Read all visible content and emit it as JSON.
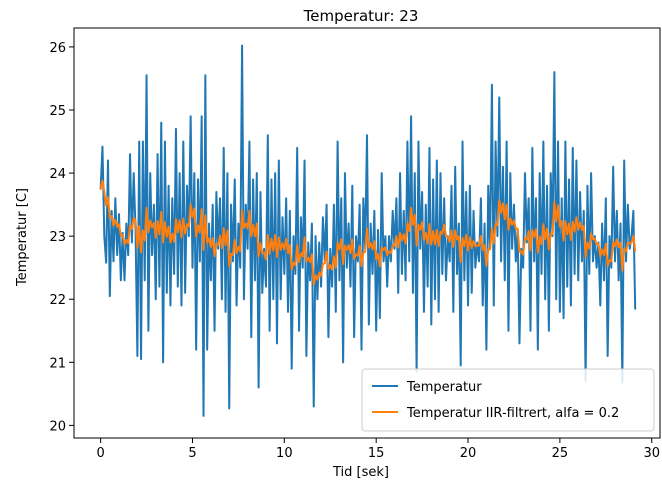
{
  "chart_data": {
    "type": "line",
    "title": "Temperatur: 23",
    "xlabel": "Tid [sek]",
    "ylabel": "Temperatur [C]",
    "xlim": [
      -1.45,
      30.45
    ],
    "ylim": [
      19.8,
      26.3
    ],
    "xticks": [
      0,
      5,
      10,
      15,
      20,
      25,
      30
    ],
    "yticks": [
      20,
      21,
      22,
      23,
      24,
      25,
      26
    ],
    "grid": false,
    "legend_position": "lower right",
    "series": [
      {
        "name": "Temperatur",
        "color": "#1f77b4",
        "x": [
          0.0,
          0.1,
          0.2,
          0.3,
          0.4,
          0.5,
          0.6,
          0.7,
          0.8,
          0.9,
          1.0,
          1.1,
          1.2,
          1.3,
          1.4,
          1.5,
          1.6,
          1.7,
          1.8,
          1.9,
          2.0,
          2.1,
          2.2,
          2.3,
          2.4,
          2.5,
          2.6,
          2.7,
          2.8,
          2.9,
          3.0,
          3.1,
          3.2,
          3.3,
          3.4,
          3.5,
          3.6,
          3.7,
          3.8,
          3.9,
          4.0,
          4.1,
          4.2,
          4.3,
          4.4,
          4.5,
          4.6,
          4.7,
          4.8,
          4.9,
          5.0,
          5.1,
          5.2,
          5.3,
          5.4,
          5.5,
          5.6,
          5.7,
          5.8,
          5.9,
          6.0,
          6.1,
          6.2,
          6.3,
          6.4,
          6.5,
          6.6,
          6.7,
          6.8,
          6.9,
          7.0,
          7.1,
          7.2,
          7.3,
          7.4,
          7.5,
          7.6,
          7.7,
          7.8,
          7.9,
          8.0,
          8.1,
          8.2,
          8.3,
          8.4,
          8.5,
          8.6,
          8.7,
          8.8,
          8.9,
          9.0,
          9.1,
          9.2,
          9.3,
          9.4,
          9.5,
          9.6,
          9.7,
          9.8,
          9.9,
          10.0,
          10.1,
          10.2,
          10.3,
          10.4,
          10.5,
          10.6,
          10.7,
          10.8,
          10.9,
          11.0,
          11.1,
          11.2,
          11.3,
          11.4,
          11.5,
          11.6,
          11.7,
          11.8,
          11.9,
          12.0,
          12.1,
          12.2,
          12.3,
          12.4,
          12.5,
          12.6,
          12.7,
          12.8,
          12.9,
          13.0,
          13.1,
          13.2,
          13.3,
          13.4,
          13.5,
          13.6,
          13.7,
          13.8,
          13.9,
          14.0,
          14.1,
          14.2,
          14.3,
          14.4,
          14.5,
          14.6,
          14.7,
          14.8,
          14.9,
          15.0,
          15.1,
          15.2,
          15.3,
          15.4,
          15.5,
          15.6,
          15.7,
          15.8,
          15.9,
          16.0,
          16.1,
          16.2,
          16.3,
          16.4,
          16.5,
          16.6,
          16.7,
          16.8,
          16.9,
          17.0,
          17.1,
          17.2,
          17.3,
          17.4,
          17.5,
          17.6,
          17.7,
          17.8,
          17.9,
          18.0,
          18.1,
          18.2,
          18.3,
          18.4,
          18.5,
          18.6,
          18.7,
          18.8,
          18.9,
          19.0,
          19.1,
          19.2,
          19.3,
          19.4,
          19.5,
          19.6,
          19.7,
          19.8,
          19.9,
          20.0,
          20.1,
          20.2,
          20.3,
          20.4,
          20.5,
          20.6,
          20.7,
          20.8,
          20.9,
          21.0,
          21.1,
          21.2,
          21.3,
          21.4,
          21.5,
          21.6,
          21.7,
          21.8,
          21.9,
          22.0,
          22.1,
          22.2,
          22.3,
          22.4,
          22.5,
          22.6,
          22.7,
          22.8,
          22.9,
          23.0,
          23.1,
          23.2,
          23.3,
          23.4,
          23.5,
          23.6,
          23.7,
          23.8,
          23.9,
          24.0,
          24.1,
          24.2,
          24.3,
          24.4,
          24.5,
          24.6,
          24.7,
          24.8,
          24.9,
          25.0,
          25.1,
          25.2,
          25.3,
          25.4,
          25.5,
          25.6,
          25.7,
          25.8,
          25.9,
          26.0,
          26.1,
          26.2,
          26.3,
          26.4,
          26.5,
          26.6,
          26.7,
          26.8,
          26.9,
          27.0,
          27.1,
          27.2,
          27.3,
          27.4,
          27.5,
          27.6,
          27.7,
          27.8,
          27.9,
          28.0,
          28.1,
          28.2,
          28.3,
          28.4,
          28.5,
          28.6,
          28.7,
          28.8,
          28.9,
          29.0,
          29.1
        ],
        "values": [
          23.75,
          24.42,
          23.0,
          22.58,
          24.2,
          22.05,
          23.4,
          22.6,
          23.6,
          22.7,
          23.35,
          22.3,
          23.05,
          22.3,
          23.2,
          22.7,
          24.3,
          22.9,
          24.0,
          23.1,
          21.1,
          24.5,
          21.05,
          24.5,
          22.3,
          25.55,
          21.5,
          24.0,
          22.7,
          23.5,
          22.0,
          24.3,
          22.2,
          24.8,
          21.0,
          24.5,
          22.1,
          23.8,
          21.9,
          23.6,
          22.4,
          24.7,
          22.2,
          24.0,
          21.9,
          24.5,
          22.1,
          23.8,
          23.0,
          24.9,
          22.5,
          24.0,
          21.2,
          23.9,
          22.6,
          24.9,
          20.15,
          25.55,
          21.2,
          23.2,
          22.3,
          23.5,
          21.5,
          23.7,
          22.8,
          23.6,
          22.0,
          24.4,
          21.8,
          24.0,
          20.27,
          23.5,
          22.6,
          23.9,
          21.9,
          23.2,
          22.5,
          26.02,
          22.0,
          23.5,
          22.8,
          24.5,
          21.4,
          23.9,
          22.3,
          24.0,
          20.6,
          23.7,
          22.1,
          22.8,
          22.2,
          24.6,
          21.5,
          23.9,
          22.0,
          24.0,
          21.3,
          24.2,
          22.0,
          23.3,
          22.4,
          23.6,
          21.8,
          23.4,
          20.9,
          23.0,
          22.4,
          24.4,
          21.5,
          23.3,
          22.5,
          24.2,
          21.1,
          22.9,
          22.3,
          23.2,
          20.3,
          23.0,
          22.0,
          22.9,
          22.2,
          23.3,
          22.6,
          23.5,
          21.4,
          22.8,
          22.2,
          23.5,
          21.8,
          24.5,
          22.3,
          23.6,
          21.0,
          24.0,
          22.5,
          23.2,
          22.2,
          23.8,
          21.4,
          23.0,
          22.6,
          23.5,
          21.2,
          23.6,
          22.8,
          24.6,
          21.6,
          23.2,
          22.4,
          23.4,
          21.5,
          23.1,
          21.7,
          24.0,
          22.6,
          23.0,
          22.2,
          23.0,
          22.6,
          23.4,
          22.8,
          23.6,
          22.1,
          24.0,
          22.4,
          23.4,
          22.3,
          24.5,
          22.6,
          24.9,
          22.1,
          24.0,
          20.85,
          24.5,
          22.8,
          23.7,
          21.8,
          23.5,
          22.2,
          24.4,
          21.6,
          23.9,
          22.0,
          24.2,
          21.8,
          24.0,
          22.4,
          23.6,
          22.3,
          23.0,
          22.6,
          23.8,
          21.8,
          24.1,
          22.4,
          23.2,
          20.95,
          24.5,
          22.3,
          23.7,
          21.9,
          23.8,
          22.1,
          23.4,
          22.5,
          22.9,
          22.6,
          23.6,
          21.9,
          23.2,
          21.2,
          23.8,
          22.8,
          25.4,
          21.9,
          24.5,
          23.0,
          25.2,
          22.6,
          24.1,
          22.3,
          24.5,
          21.5,
          24.0,
          22.8,
          23.5,
          22.6,
          23.1,
          21.3,
          22.8,
          22.5,
          24.0,
          22.9,
          23.6,
          21.5,
          24.4,
          22.6,
          23.6,
          21.2,
          24.0,
          22.4,
          24.5,
          22.0,
          23.8,
          21.5,
          24.0,
          23.0,
          25.6,
          22.0,
          24.5,
          21.8,
          23.6,
          21.7,
          24.5,
          22.2,
          23.9,
          21.9,
          24.4,
          22.4,
          24.2,
          22.3,
          23.7,
          22.6,
          23.4,
          20.7,
          23.8,
          22.4,
          24.0,
          22.6,
          23.0,
          22.5,
          22.9,
          21.9,
          23.2,
          22.3,
          23.6,
          21.1,
          23.0,
          22.5,
          24.1,
          22.6,
          23.4,
          22.3,
          23.2,
          20.68,
          24.2,
          22.6,
          23.5,
          22.8,
          23.0,
          23.4,
          21.85
        ]
      },
      {
        "name": "Temperatur IIR-filtrert, alfa = 0.2",
        "color": "#ff7f0e",
        "x": [
          0.0,
          0.1,
          0.2,
          0.3,
          0.4,
          0.5,
          0.6,
          0.7,
          0.8,
          0.9,
          1.0,
          1.1,
          1.2,
          1.3,
          1.4,
          1.5,
          1.6,
          1.7,
          1.8,
          1.9,
          2.0,
          2.1,
          2.2,
          2.3,
          2.4,
          2.5,
          2.6,
          2.7,
          2.8,
          2.9,
          3.0,
          3.1,
          3.2,
          3.3,
          3.4,
          3.5,
          3.6,
          3.7,
          3.8,
          3.9,
          4.0,
          4.1,
          4.2,
          4.3,
          4.4,
          4.5,
          4.6,
          4.7,
          4.8,
          4.9,
          5.0,
          5.1,
          5.2,
          5.3,
          5.4,
          5.5,
          5.6,
          5.7,
          5.8,
          5.9,
          6.0,
          6.1,
          6.2,
          6.3,
          6.4,
          6.5,
          6.6,
          6.7,
          6.8,
          6.9,
          7.0,
          7.1,
          7.2,
          7.3,
          7.4,
          7.5,
          7.6,
          7.7,
          7.8,
          7.9,
          8.0,
          8.1,
          8.2,
          8.3,
          8.4,
          8.5,
          8.6,
          8.7,
          8.8,
          8.9,
          9.0,
          9.1,
          9.2,
          9.3,
          9.4,
          9.5,
          9.6,
          9.7,
          9.8,
          9.9,
          10.0,
          10.1,
          10.2,
          10.3,
          10.4,
          10.5,
          10.6,
          10.7,
          10.8,
          10.9,
          11.0,
          11.1,
          11.2,
          11.3,
          11.4,
          11.5,
          11.6,
          11.7,
          11.8,
          11.9,
          12.0,
          12.1,
          12.2,
          12.3,
          12.4,
          12.5,
          12.6,
          12.7,
          12.8,
          12.9,
          13.0,
          13.1,
          13.2,
          13.3,
          13.4,
          13.5,
          13.6,
          13.7,
          13.8,
          13.9,
          14.0,
          14.1,
          14.2,
          14.3,
          14.4,
          14.5,
          14.6,
          14.7,
          14.8,
          14.9,
          15.0,
          15.1,
          15.2,
          15.3,
          15.4,
          15.5,
          15.6,
          15.7,
          15.8,
          15.9,
          16.0,
          16.1,
          16.2,
          16.3,
          16.4,
          16.5,
          16.6,
          16.7,
          16.8,
          16.9,
          17.0,
          17.1,
          17.2,
          17.3,
          17.4,
          17.5,
          17.6,
          17.7,
          17.8,
          17.9,
          18.0,
          18.1,
          18.2,
          18.3,
          18.4,
          18.5,
          18.6,
          18.7,
          18.8,
          18.9,
          19.0,
          19.1,
          19.2,
          19.3,
          19.4,
          19.5,
          19.6,
          19.7,
          19.8,
          19.9,
          20.0,
          20.1,
          20.2,
          20.3,
          20.4,
          20.5,
          20.6,
          20.7,
          20.8,
          20.9,
          21.0,
          21.1,
          21.2,
          21.3,
          21.4,
          21.5,
          21.6,
          21.7,
          21.8,
          21.9,
          22.0,
          22.1,
          22.2,
          22.3,
          22.4,
          22.5,
          22.6,
          22.7,
          22.8,
          22.9,
          23.0,
          23.1,
          23.2,
          23.3,
          23.4,
          23.5,
          23.6,
          23.7,
          23.8,
          23.9,
          24.0,
          24.1,
          24.2,
          24.3,
          24.4,
          24.5,
          24.6,
          24.7,
          24.8,
          24.9,
          25.0,
          25.1,
          25.2,
          25.3,
          25.4,
          25.5,
          25.6,
          25.7,
          25.8,
          25.9,
          26.0,
          26.1,
          26.2,
          26.3,
          26.4,
          26.5,
          26.6,
          26.7,
          26.8,
          26.9,
          27.0,
          27.1,
          27.2,
          27.3,
          27.4,
          27.5,
          27.6,
          27.7,
          27.8,
          27.9,
          28.0,
          28.1,
          28.2,
          28.3,
          28.4,
          28.5,
          28.6,
          28.7,
          28.8,
          28.9,
          29.0,
          29.1
        ],
        "values": [
          23.75,
          23.88,
          23.7,
          23.48,
          23.62,
          23.3,
          23.32,
          23.17,
          23.26,
          23.15,
          23.19,
          23.01,
          23.02,
          22.87,
          22.94,
          22.89,
          23.17,
          23.11,
          23.29,
          23.25,
          22.82,
          23.16,
          22.74,
          23.09,
          22.93,
          23.45,
          23.06,
          23.25,
          23.14,
          23.21,
          22.97,
          23.24,
          23.03,
          23.38,
          22.9,
          23.22,
          22.99,
          23.15,
          22.9,
          23.04,
          22.91,
          23.27,
          23.06,
          23.25,
          22.98,
          23.28,
          23.04,
          23.19,
          23.15,
          23.5,
          23.3,
          23.44,
          22.99,
          23.17,
          23.06,
          23.43,
          22.78,
          23.33,
          22.9,
          22.96,
          22.83,
          22.97,
          22.68,
          22.88,
          22.86,
          23.01,
          22.81,
          23.13,
          22.86,
          23.09,
          22.53,
          22.72,
          22.7,
          22.94,
          22.73,
          22.83,
          22.76,
          23.41,
          23.13,
          23.2,
          23.12,
          23.4,
          23.0,
          23.18,
          23.0,
          23.2,
          22.68,
          22.89,
          22.73,
          22.74,
          22.63,
          23.02,
          22.72,
          22.96,
          22.77,
          23.02,
          22.67,
          22.98,
          22.78,
          22.89,
          22.79,
          22.96,
          22.73,
          22.86,
          22.47,
          22.58,
          22.54,
          22.86,
          22.59,
          22.73,
          22.68,
          22.98,
          22.6,
          22.66,
          22.59,
          22.71,
          22.23,
          22.38,
          22.31,
          22.42,
          22.37,
          22.56,
          22.57,
          22.75,
          22.48,
          22.54,
          22.47,
          22.68,
          22.5,
          22.9,
          22.79,
          22.95,
          22.56,
          22.85,
          22.78,
          22.86,
          22.73,
          22.95,
          22.64,
          22.71,
          22.69,
          22.85,
          22.52,
          22.74,
          22.75,
          23.12,
          22.82,
          22.89,
          22.79,
          22.92,
          22.63,
          22.72,
          22.52,
          22.82,
          22.78,
          22.82,
          22.7,
          22.76,
          22.73,
          22.86,
          22.85,
          23.0,
          22.82,
          23.05,
          22.93,
          23.03,
          22.88,
          23.2,
          23.08,
          23.45,
          23.18,
          23.34,
          22.85,
          23.18,
          23.1,
          23.22,
          22.94,
          23.05,
          22.88,
          23.19,
          22.87,
          23.08,
          22.87,
          23.1,
          22.84,
          23.07,
          23.04,
          23.18,
          23.0,
          22.99,
          22.91,
          23.09,
          22.83,
          23.09,
          22.95,
          23.0,
          22.59,
          22.97,
          22.84,
          23.02,
          22.77,
          22.98,
          22.81,
          22.92,
          22.84,
          22.85,
          22.85,
          23.0,
          22.78,
          22.86,
          22.53,
          22.79,
          22.79,
          23.12,
          22.88,
          23.2,
          23.17,
          23.57,
          23.37,
          23.52,
          23.27,
          23.5,
          23.1,
          23.28,
          23.18,
          23.25,
          23.12,
          23.12,
          22.75,
          22.76,
          22.71,
          22.97,
          22.95,
          23.08,
          22.77,
          23.1,
          22.99,
          23.11,
          22.74,
          22.99,
          22.87,
          23.19,
          22.95,
          23.12,
          22.79,
          23.04,
          23.03,
          23.54,
          23.23,
          23.49,
          23.15,
          23.24,
          22.93,
          23.24,
          23.03,
          23.2,
          22.94,
          23.23,
          23.07,
          23.3,
          23.1,
          23.22,
          23.1,
          23.16,
          22.67,
          22.9,
          22.8,
          23.04,
          22.95,
          22.96,
          22.87,
          22.88,
          22.68,
          22.79,
          22.7,
          22.88,
          22.53,
          22.62,
          22.6,
          22.9,
          22.84,
          22.95,
          22.82,
          22.9,
          22.45,
          22.8,
          22.76,
          22.9,
          22.88,
          22.9,
          23.0,
          22.77
        ]
      }
    ]
  }
}
